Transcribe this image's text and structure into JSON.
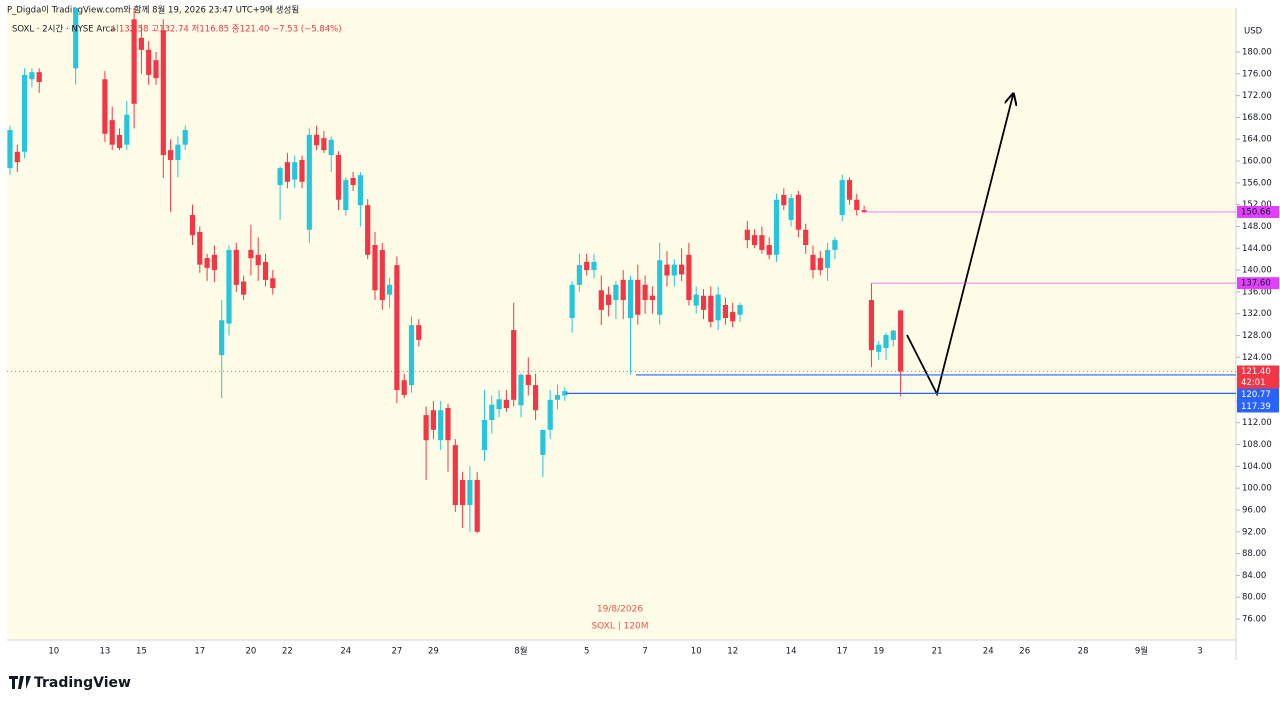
{
  "chart_data": {
    "type": "candlestick",
    "caption": "P_Digda이 TradingView.com와 함께 8월 19, 2026 23:47 UTC+9에 생성됨",
    "symbol": "SOXL · 2시간 · NYSE Arca",
    "ohlc_text": "시132.58 고132.74 저116.85 종121.40 −7.53 (−5.84%)",
    "watermark": [
      "19/8/2026",
      "SOXL | 120M"
    ],
    "currency": "USD",
    "logo": "TradingView",
    "countdown": "42:01",
    "up_color": "#26c6da",
    "down_color": "#f23645",
    "grid": false,
    "ylim": [
      72.15,
      188.07
    ],
    "yticks": [
      {
        "value": 76,
        "label": "76.00"
      },
      {
        "value": 80,
        "label": "80.00"
      },
      {
        "value": 84,
        "label": "84.00"
      },
      {
        "value": 88,
        "label": "88.00"
      },
      {
        "value": 92,
        "label": "92.00"
      },
      {
        "value": 96,
        "label": "96.00"
      },
      {
        "value": 100,
        "label": "100.00"
      },
      {
        "value": 104,
        "label": "104.00"
      },
      {
        "value": 108,
        "label": "108.00"
      },
      {
        "value": 112,
        "label": "112.00"
      },
      {
        "value": 116,
        "label": "116.00"
      },
      {
        "value": 120,
        "label": "120.00"
      },
      {
        "value": 124,
        "label": "124.00"
      },
      {
        "value": 128,
        "label": "128.00"
      },
      {
        "value": 132,
        "label": "132.00"
      },
      {
        "value": 136,
        "label": "136.00"
      },
      {
        "value": 140,
        "label": "140.00"
      },
      {
        "value": 144,
        "label": "144.00"
      },
      {
        "value": 148,
        "label": "148.00"
      },
      {
        "value": 152,
        "label": "152.00"
      },
      {
        "value": 156,
        "label": "156.00"
      },
      {
        "value": 160,
        "label": "160.00"
      },
      {
        "value": 164,
        "label": "164.00"
      },
      {
        "value": 168,
        "label": "168.00"
      },
      {
        "value": 172,
        "label": "172.00"
      },
      {
        "value": 176,
        "label": "176.00"
      },
      {
        "value": 180,
        "label": "180.00"
      }
    ],
    "last_price": {
      "value": 121.4,
      "label": "121.40",
      "color": "#f23645"
    },
    "hlines": [
      {
        "value": 150.66,
        "color": "#e040fb"
      },
      {
        "value": 137.6,
        "label": "137.60",
        "color": "#e040fb"
      },
      {
        "value": 120.77,
        "color": "#2962ff"
      },
      {
        "value": 117.39,
        "color": "#2962ff"
      }
    ],
    "categories": [
      null,
      null,
      null,
      null,
      null,
      null,
      "10",
      null,
      null,
      null,
      null,
      null,
      null,
      "13",
      null,
      null,
      null,
      null,
      "15",
      null,
      null,
      null,
      null,
      null,
      null,
      null,
      "17",
      null,
      null,
      null,
      null,
      null,
      null,
      "20",
      null,
      null,
      null,
      null,
      "22",
      null,
      null,
      null,
      null,
      null,
      null,
      null,
      "24",
      null,
      null,
      null,
      null,
      null,
      null,
      "27",
      null,
      null,
      null,
      null,
      "29",
      null,
      null,
      null,
      null,
      null,
      null,
      null,
      null,
      null,
      null,
      null,
      "8월",
      null,
      null,
      null,
      null,
      null,
      null,
      null,
      null,
      "5",
      null,
      null,
      null,
      null,
      null,
      null,
      null,
      "7",
      null,
      null,
      null,
      null,
      null,
      null,
      "10",
      null,
      null,
      null,
      null,
      "12",
      null,
      null,
      null,
      null,
      null,
      null,
      null,
      "14",
      null,
      null,
      null,
      null,
      null,
      null,
      "17",
      null,
      null,
      null,
      null,
      "19",
      null,
      null,
      null,
      null,
      null,
      null,
      null,
      "21",
      null,
      null,
      null,
      null,
      null,
      null,
      "24",
      null,
      null,
      null,
      null,
      "26",
      null,
      null,
      null,
      null,
      null,
      null,
      null,
      "28",
      null,
      null,
      null,
      null,
      null,
      null,
      null,
      "9월",
      null,
      null,
      null,
      null,
      null,
      null,
      null,
      "3",
      null,
      null,
      null,
      null
    ],
    "open": [
      158.7,
      161.7,
      161.7,
      175,
      176.3,
      null,
      null,
      null,
      null,
      177,
      null,
      null,
      null,
      175,
      167.5,
      164.8,
      163,
      186,
      182.6,
      180.4,
      178.5,
      184,
      162,
      160.2,
      163,
      150.1,
      147,
      142.2,
      142.8,
      124.4,
      130.2,
      143.7,
      137.9,
      143.7,
      142.8,
      141.5,
      138.5,
      155.6,
      159.8,
      156.6,
      160.2,
      147.4,
      164.8,
      164.2,
      161.1,
      161.1,
      151,
      156.9,
      151.9,
      151.9,
      144.6,
      143.7,
      135.5,
      140.9,
      119.8,
      118.9,
      129.9,
      113.4,
      114.3,
      108.8,
      114.7,
      107.9,
      101.5,
      96.9,
      101.5,
      107,
      112.5,
      114.5,
      116.2,
      129,
      115.2,
      120.8,
      118.9,
      106.1,
      110.7,
      116.2,
      117,
      131.2,
      137.3,
      141.5,
      140,
      136.3,
      135.5,
      134.5,
      138.2,
      131.2,
      138.2,
      137.3,
      135.3,
      131.8,
      141,
      139,
      141,
      142.8,
      133.5,
      135.3,
      135.3,
      130.8,
      133.6,
      132.3,
      131.8,
      147.4,
      146.4,
      146.4,
      144.6,
      142.8,
      153.8,
      149.2,
      153.8,
      147.4,
      142.8,
      142.2,
      140.4,
      143.7,
      150.1,
      156.5,
      152.9,
      151,
      134.5,
      125,
      125.7,
      127.2,
      132.58,
      null,
      null,
      null,
      null,
      null,
      null,
      null,
      null,
      null,
      null,
      null,
      null,
      null,
      null,
      null,
      null,
      null,
      null,
      null,
      null,
      null,
      null,
      null,
      null,
      null,
      null,
      null,
      null,
      null,
      null,
      null,
      null,
      null,
      null,
      null,
      null,
      null,
      null,
      null,
      null,
      null,
      null,
      null,
      null,
      null
    ],
    "high": [
      166.5,
      163,
      177,
      177,
      177,
      null,
      null,
      null,
      null,
      190,
      null,
      null,
      null,
      176.5,
      170,
      166,
      171,
      190,
      185,
      182,
      180,
      186,
      164,
      164.5,
      166.5,
      152,
      148,
      143,
      144.5,
      134.5,
      144.5,
      145,
      139,
      148.3,
      146,
      143,
      140,
      159,
      161.5,
      161,
      161,
      166,
      166.5,
      165.5,
      164.5,
      161.8,
      157,
      158,
      158,
      153,
      147,
      145,
      138.5,
      142.5,
      121,
      131.5,
      131,
      115,
      116,
      116,
      115.5,
      109,
      103,
      104,
      103,
      118,
      117,
      118,
      118,
      134,
      121,
      124,
      121,
      110,
      118,
      119,
      118.5,
      138,
      143,
      143,
      143,
      139,
      137,
      138,
      140,
      139,
      141,
      139,
      137,
      145,
      143.5,
      142,
      144,
      145,
      137,
      136.5,
      137,
      137,
      135,
      134,
      134,
      149,
      147.5,
      148,
      146,
      154,
      155,
      154,
      154.5,
      148.5,
      144.5,
      143.5,
      145,
      146,
      157.5,
      157,
      154,
      151.8,
      137.6,
      127,
      128.5,
      129,
      132.74,
      null,
      null,
      null,
      null,
      null,
      null,
      null,
      null,
      null,
      null,
      null,
      null,
      null,
      null,
      null,
      null,
      null,
      null,
      null,
      null,
      null,
      null,
      null,
      null,
      null,
      null,
      null,
      null,
      null,
      null,
      null,
      null,
      null,
      null,
      null,
      null,
      null,
      null,
      null,
      null,
      null,
      null,
      null,
      null,
      null
    ],
    "low": [
      157.5,
      158,
      160.5,
      173.5,
      172.5,
      null,
      null,
      null,
      null,
      174,
      null,
      null,
      null,
      163.5,
      162,
      162,
      162,
      166,
      176,
      174,
      174,
      156.9,
      150.7,
      157,
      162,
      144.6,
      139.5,
      138,
      137.8,
      116.5,
      128,
      136,
      134.5,
      139,
      138,
      137,
      135.5,
      149.2,
      155,
      155,
      155,
      145,
      162,
      161.5,
      158,
      151,
      150,
      154.5,
      148,
      142,
      134.5,
      132.7,
      133,
      115.6,
      116.5,
      117.5,
      126,
      101.5,
      109,
      107,
      103,
      95.6,
      92.7,
      92,
      91.7,
      105,
      110,
      113,
      114,
      115,
      113,
      117,
      112.5,
      102,
      109,
      114.5,
      116,
      128.5,
      136,
      139,
      138.5,
      129.9,
      131.5,
      131,
      131,
      120.8,
      130,
      132,
      132,
      130,
      137,
      137,
      138,
      133.5,
      132,
      131,
      129.5,
      129,
      130,
      129.5,
      130.5,
      144,
      144,
      143,
      142,
      141.5,
      151,
      148,
      146,
      143,
      138.5,
      139,
      138,
      142,
      149,
      152,
      150,
      150.5,
      122.2,
      123.5,
      123.5,
      126,
      116.85,
      null,
      null,
      null,
      null,
      null,
      null,
      null,
      null,
      null,
      null,
      null,
      null,
      null,
      null,
      null,
      null,
      null,
      null,
      null,
      null,
      null,
      null,
      null,
      null,
      null,
      null,
      null,
      null,
      null,
      null,
      null,
      null,
      null,
      null,
      null,
      null,
      null,
      null,
      null,
      null,
      null,
      null,
      null,
      null,
      null
    ],
    "close": [
      165.7,
      159.8,
      175.8,
      176.3,
      174.5,
      null,
      null,
      null,
      null,
      189,
      null,
      null,
      null,
      165,
      163,
      162.4,
      168.5,
      170.5,
      180.4,
      175.8,
      175.2,
      161.1,
      160.2,
      163,
      165.7,
      146.4,
      141,
      140.4,
      140,
      130.8,
      143.7,
      137.3,
      135.5,
      142.2,
      140.9,
      138.2,
      136.7,
      158.7,
      156.2,
      159.8,
      156.2,
      164.8,
      162.9,
      162,
      163.9,
      152.9,
      156.5,
      155.6,
      157.4,
      142.8,
      136.3,
      134.5,
      137.3,
      118,
      117.1,
      129.9,
      127.2,
      108.8,
      110.7,
      114.3,
      108.8,
      96.9,
      96.9,
      101.5,
      92,
      112.5,
      115.3,
      116.3,
      114.7,
      116.2,
      120.8,
      118.9,
      114.3,
      110.7,
      116.2,
      117.1,
      117.8,
      137.3,
      140.9,
      140,
      141.5,
      132.7,
      133.6,
      137.3,
      134.5,
      138.2,
      131.8,
      134.5,
      134.5,
      141.8,
      139,
      141,
      139.2,
      134.5,
      135.5,
      132.7,
      130.5,
      135.5,
      131.2,
      130.6,
      133.6,
      145.5,
      144.6,
      143.7,
      142.8,
      152.9,
      151.9,
      153.2,
      147.4,
      144.6,
      140,
      140,
      143.7,
      145.5,
      156.5,
      152.9,
      151,
      150.7,
      125.3,
      126.3,
      128.1,
      128.9,
      121.4,
      null,
      null,
      null,
      null,
      null,
      null,
      null,
      null,
      null,
      null,
      null,
      null,
      null,
      null,
      null,
      null,
      null,
      null,
      null,
      null,
      null,
      null,
      null,
      null,
      null,
      null,
      null,
      null,
      null,
      null,
      null,
      null,
      null,
      null,
      null,
      null,
      null,
      null,
      null,
      null,
      null,
      null,
      null,
      null,
      null
    ]
  }
}
